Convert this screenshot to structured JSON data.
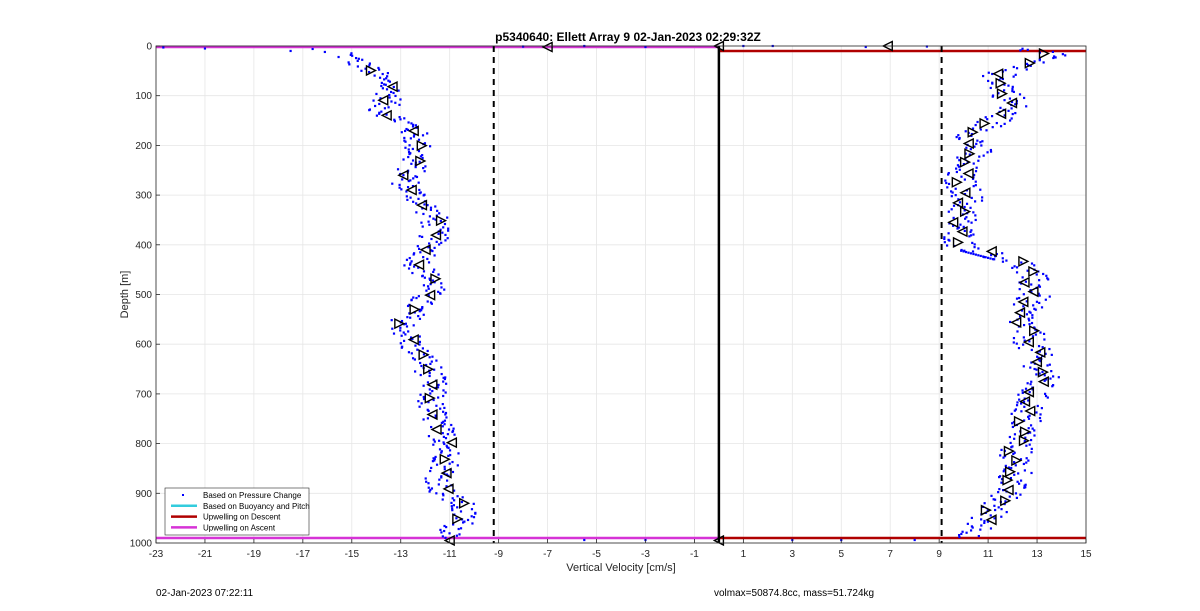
{
  "chart_data": {
    "type": "scatter",
    "title": "p5340640: Ellett Array 9 02-Jan-2023 02:29:32Z",
    "xlabel": "Vertical Velocity [cm/s]",
    "ylabel": "Depth [m]",
    "xlim": [
      -23,
      15
    ],
    "ylim": [
      0,
      1000
    ],
    "y_reversed": true,
    "xticks": [
      -23,
      -21,
      -19,
      -17,
      -15,
      -13,
      -11,
      -9,
      -7,
      -5,
      -3,
      -1,
      1,
      3,
      5,
      7,
      9,
      11,
      13,
      15
    ],
    "yticks": [
      0,
      100,
      200,
      300,
      400,
      500,
      600,
      700,
      800,
      900,
      1000
    ],
    "grid": true,
    "legend_position": "bottom-left",
    "legend": [
      {
        "label": "Based on Pressure Change",
        "style": "dot",
        "color": "#0000ff"
      },
      {
        "label": "Based on Buoyancy and Pitch",
        "style": "line",
        "color": "#33ccdd"
      },
      {
        "label": "Upwelling on Descent",
        "style": "line",
        "color": "#b00000"
      },
      {
        "label": "Upwelling on Ascent",
        "style": "line",
        "color": "#d633d6"
      }
    ],
    "reference_lines": [
      {
        "x": -9.2,
        "style": "dashed",
        "color": "#000000"
      },
      {
        "x": 0,
        "style": "solid",
        "color": "#000000"
      },
      {
        "x": 9.1,
        "style": "dashed",
        "color": "#000000"
      }
    ],
    "upwelling_descent": [
      {
        "depth": 10,
        "from_x": 0,
        "to_x": 15
      },
      {
        "depth": 990,
        "from_x": 0,
        "to_x": 15
      }
    ],
    "upwelling_ascent": [
      {
        "depth": 2,
        "from_x": -23,
        "to_x": 0
      },
      {
        "depth": 990,
        "from_x": -23,
        "to_x": 0
      }
    ],
    "series_ascent_profile": {
      "depth": [
        20,
        50,
        80,
        100,
        130,
        160,
        200,
        240,
        280,
        320,
        350,
        400,
        440,
        480,
        520,
        560,
        600,
        640,
        680,
        720,
        760,
        800,
        840,
        870,
        900,
        920,
        950,
        980
      ],
      "velocity": [
        -15.2,
        -14.2,
        -13.5,
        -13.4,
        -13.8,
        -12.6,
        -12.3,
        -12.5,
        -12.8,
        -12.0,
        -11.6,
        -11.7,
        -12.3,
        -11.6,
        -12.3,
        -12.9,
        -12.6,
        -11.9,
        -11.7,
        -11.8,
        -11.5,
        -11.1,
        -11.1,
        -11.4,
        -11.3,
        -10.6,
        -10.4,
        -10.9
      ]
    },
    "series_descent_profile": {
      "depth": [
        10,
        20,
        40,
        60,
        90,
        120,
        150,
        180,
        210,
        240,
        270,
        300,
        330,
        370,
        400,
        420,
        440,
        470,
        500,
        540,
        580,
        620,
        660,
        700,
        740,
        780,
        820,
        860,
        900,
        940,
        980
      ],
      "velocity": [
        13.0,
        13.6,
        12.2,
        11.4,
        11.8,
        12.0,
        11.3,
        10.4,
        10.5,
        9.9,
        9.8,
        10.2,
        10.0,
        9.8,
        9.9,
        11.2,
        12.4,
        12.8,
        12.9,
        12.3,
        12.6,
        12.9,
        13.3,
        12.8,
        12.6,
        12.4,
        12.1,
        12.2,
        11.7,
        11.1,
        10.5
      ]
    },
    "surface_points": [
      {
        "x": -22.7,
        "depth": 3
      },
      {
        "x": -21.0,
        "depth": 5
      },
      {
        "x": -17.5,
        "depth": 10
      },
      {
        "x": -16.6,
        "depth": 6
      },
      {
        "x": -16.1,
        "depth": 12
      },
      {
        "x": -8.0,
        "depth": 1
      },
      {
        "x": -5.5,
        "depth": 0
      },
      {
        "x": -3.0,
        "depth": 2
      },
      {
        "x": 1.0,
        "depth": 0
      },
      {
        "x": 2.2,
        "depth": 0
      },
      {
        "x": 6.0,
        "depth": 2
      },
      {
        "x": 8.5,
        "depth": 1
      },
      {
        "x": -5.5,
        "depth": 994
      },
      {
        "x": -3.0,
        "depth": 994
      },
      {
        "x": 3.0,
        "depth": 994
      },
      {
        "x": 5.0,
        "depth": 994
      },
      {
        "x": 8.0,
        "depth": 994
      }
    ],
    "markers": [
      {
        "x": -7.0,
        "depth": 2,
        "dir": "left"
      },
      {
        "x": 0.0,
        "depth": 0,
        "dir": "left"
      },
      {
        "x": 6.9,
        "depth": 0,
        "dir": "left"
      },
      {
        "x": 0.0,
        "depth": 995,
        "dir": "left"
      },
      {
        "x": -11.0,
        "depth": 995,
        "dir": "left"
      }
    ]
  },
  "footer": {
    "timestamp": "02-Jan-2023 07:22:11",
    "stats": "volmax=50874.8cc, mass=51.724kg"
  }
}
